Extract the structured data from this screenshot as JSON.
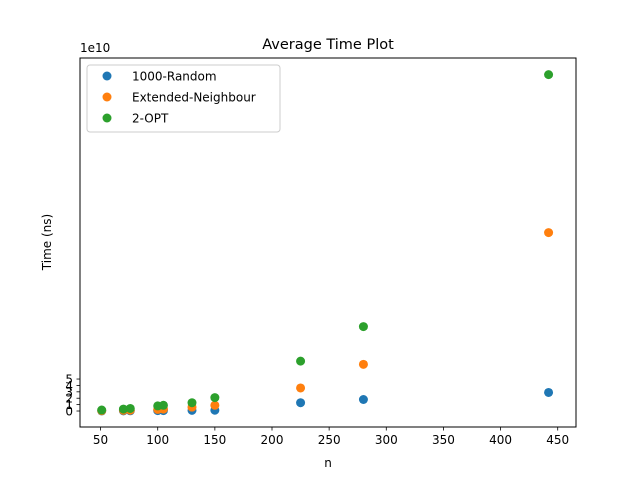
{
  "chart_data": {
    "type": "scatter",
    "title": "Average Time Plot",
    "xlabel": "n",
    "ylabel": "Time (ns)",
    "y_offset_label": "1e10",
    "xlim": [
      32,
      466
    ],
    "ylim": [
      -2.5,
      55.2
    ],
    "x_ticks": [
      50,
      100,
      150,
      200,
      250,
      300,
      350,
      400,
      450
    ],
    "y_ticks": [
      0,
      1,
      2,
      3,
      4,
      5
    ],
    "legend_position": "upper-left",
    "grid": false,
    "series": [
      {
        "name": "1000-Random",
        "color": "#1f77b4",
        "points": [
          [
            51,
            0.02
          ],
          [
            70,
            0.03
          ],
          [
            76,
            0.04
          ],
          [
            100,
            0.06
          ],
          [
            105,
            0.07
          ],
          [
            130,
            0.1
          ],
          [
            150,
            0.12
          ],
          [
            225,
            1.3
          ],
          [
            280,
            1.8
          ],
          [
            442,
            2.9
          ]
        ]
      },
      {
        "name": "Extended-Neighbour",
        "color": "#ff7f0e",
        "points": [
          [
            51,
            0.05
          ],
          [
            70,
            0.1
          ],
          [
            76,
            0.12
          ],
          [
            100,
            0.25
          ],
          [
            105,
            0.3
          ],
          [
            130,
            0.6
          ],
          [
            150,
            0.9
          ],
          [
            225,
            3.6
          ],
          [
            280,
            7.3
          ],
          [
            442,
            27.9
          ]
        ]
      },
      {
        "name": "2-OPT",
        "color": "#2ca02c",
        "points": [
          [
            51,
            0.15
          ],
          [
            70,
            0.3
          ],
          [
            76,
            0.4
          ],
          [
            100,
            0.8
          ],
          [
            105,
            0.9
          ],
          [
            130,
            1.3
          ],
          [
            150,
            2.1
          ],
          [
            225,
            7.8
          ],
          [
            280,
            13.2
          ],
          [
            442,
            52.6
          ]
        ]
      }
    ]
  }
}
